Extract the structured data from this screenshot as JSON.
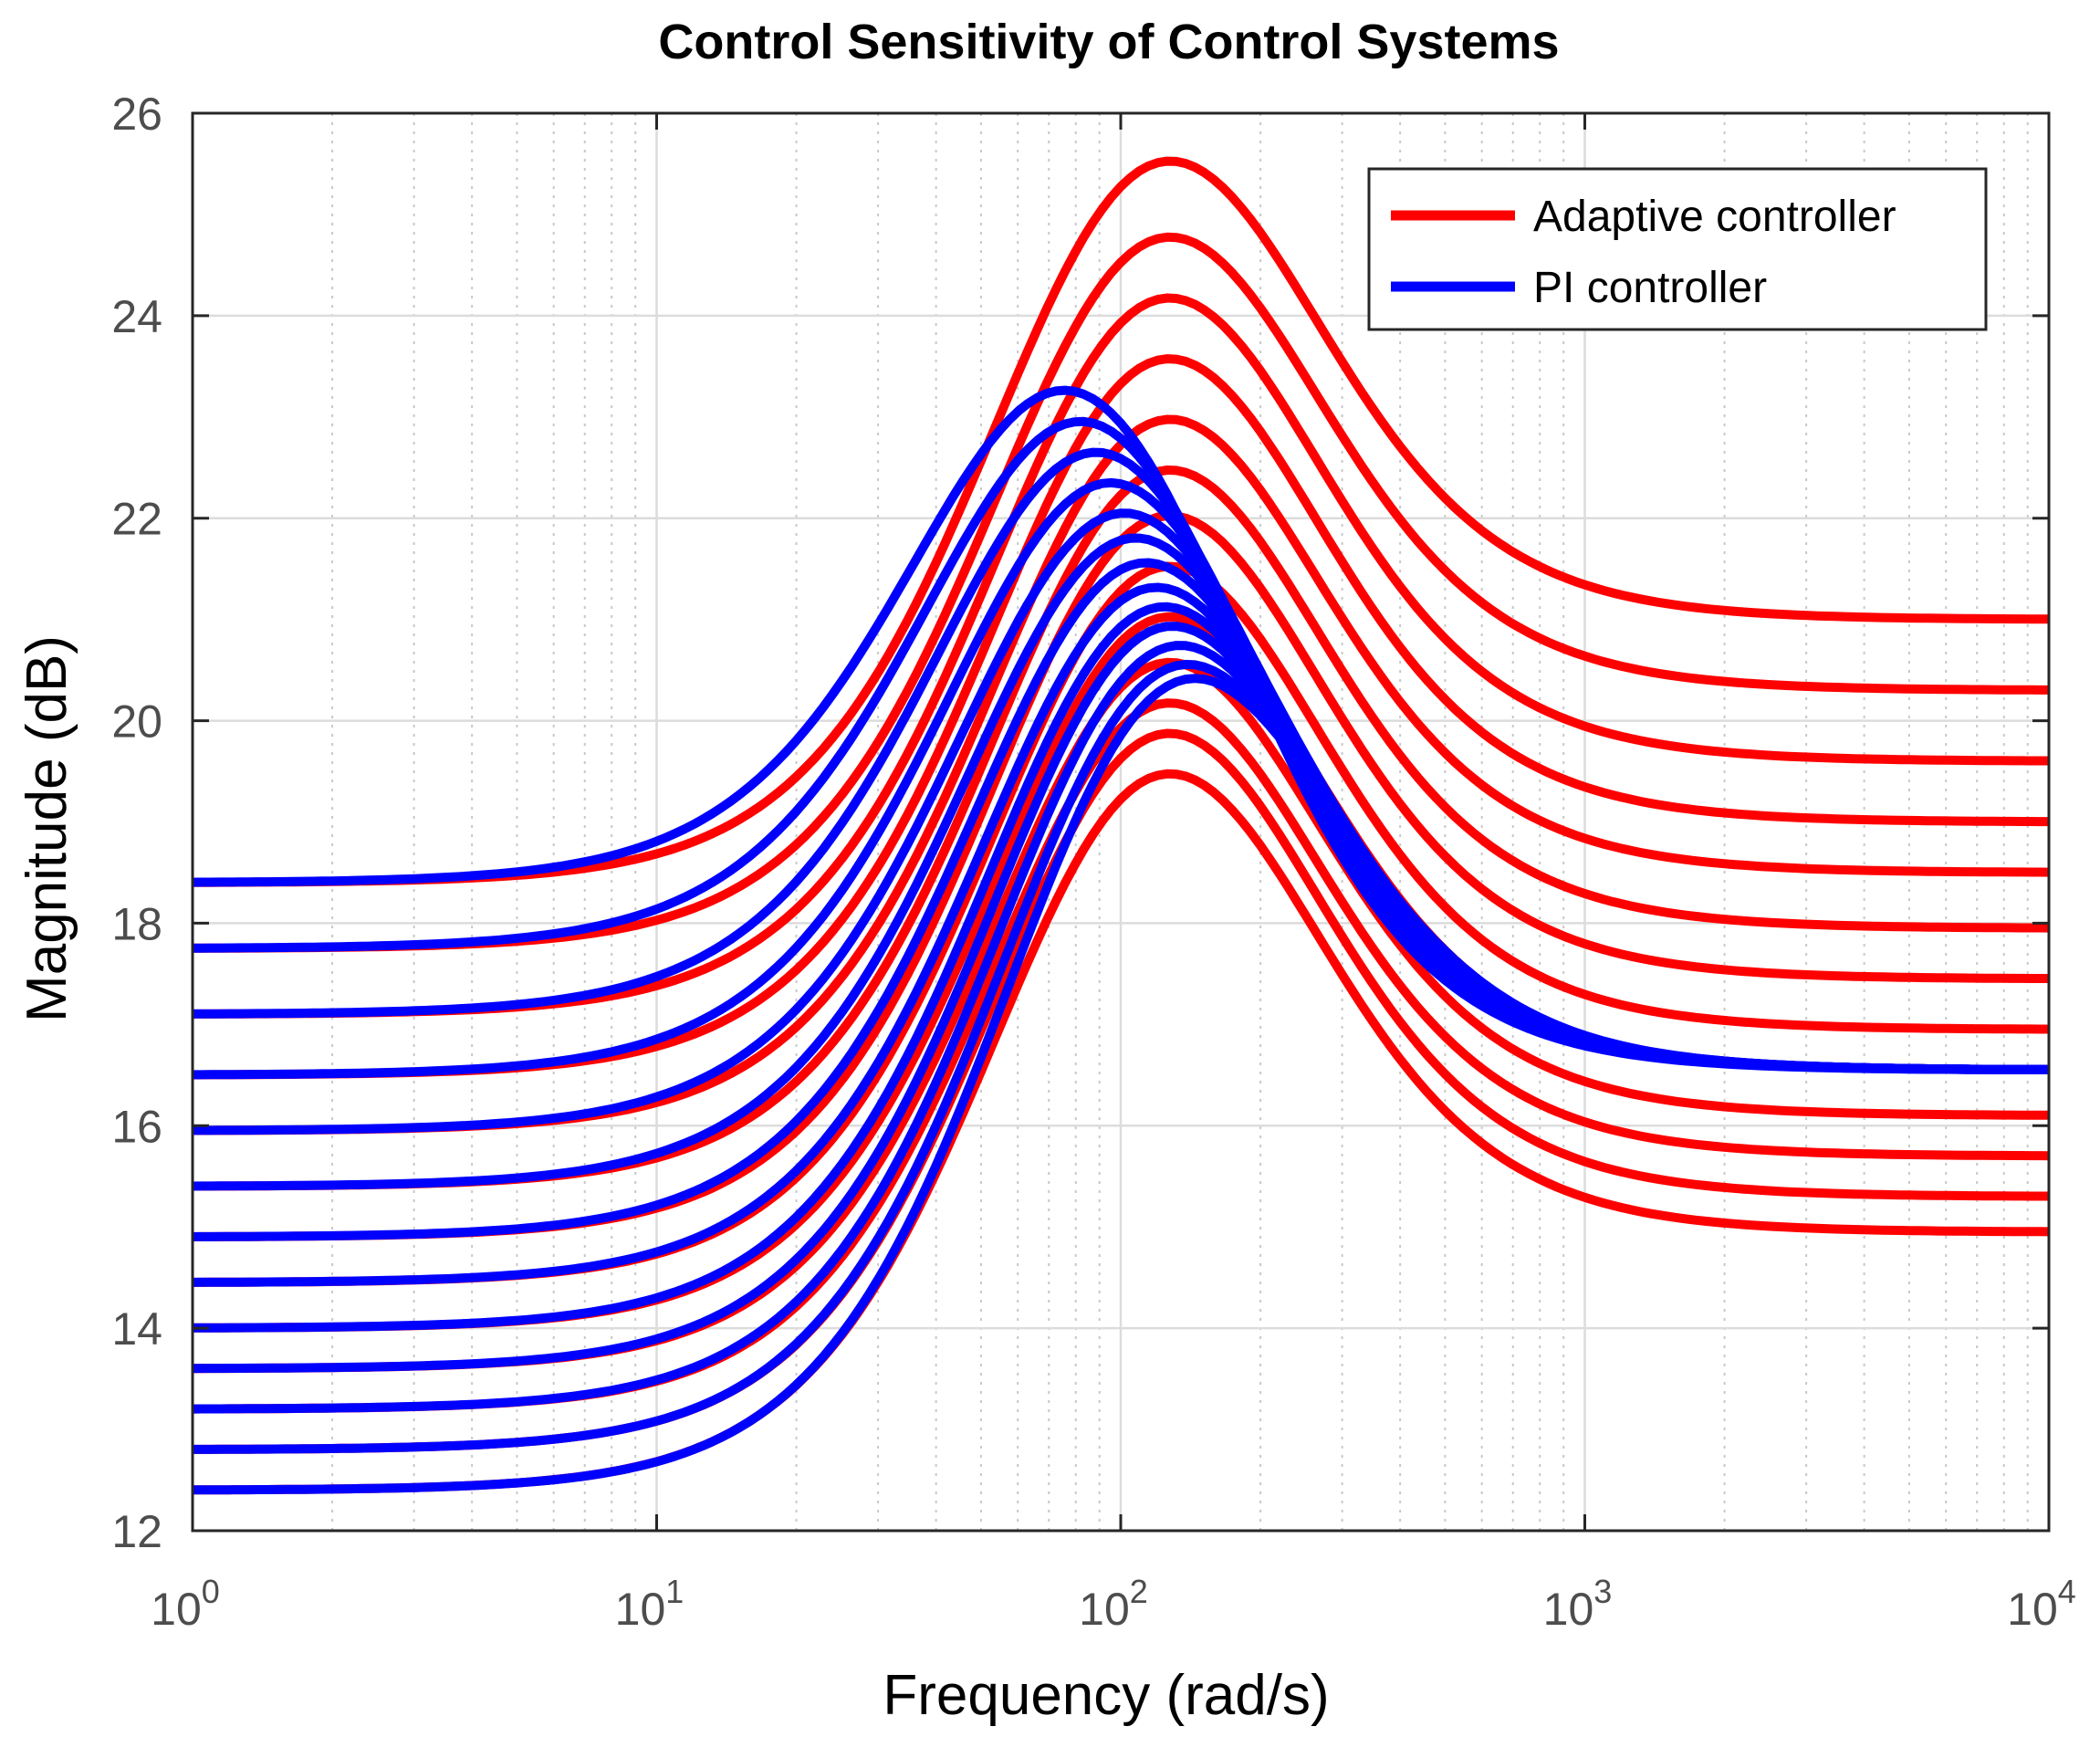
{
  "chart_data": {
    "type": "line",
    "title": "Control Sensitivity of Control Systems",
    "xlabel": "Frequency  (rad/s)",
    "ylabel": "Magnitude (dB)",
    "xscale": "log",
    "xlim": [
      1,
      10000
    ],
    "ylim": [
      12,
      26
    ],
    "grid": true,
    "minor_grid": true,
    "xticks": [
      {
        "value": 1,
        "base": "10",
        "exp": "0"
      },
      {
        "value": 10,
        "base": "10",
        "exp": "1"
      },
      {
        "value": 100,
        "base": "10",
        "exp": "2"
      },
      {
        "value": 1000,
        "base": "10",
        "exp": "3"
      },
      {
        "value": 10000,
        "base": "10",
        "exp": "4"
      }
    ],
    "yticks": [
      12,
      14,
      16,
      18,
      20,
      22,
      24,
      26
    ],
    "legend": {
      "position": "top-right",
      "entries": [
        {
          "label": "Adaptive controller",
          "color": "#ff0000"
        },
        {
          "label": "PI controller",
          "color": "#0000ff"
        }
      ]
    },
    "series": [
      {
        "name": "Adaptive controller",
        "color": "#ff0000",
        "low_freq_db": 18.4,
        "peak_db": 25.5,
        "peak_freq": 118,
        "high_freq_db": 21.0
      },
      {
        "name": "Adaptive controller",
        "color": "#ff0000",
        "low_freq_db": 17.75,
        "peak_db": 24.75,
        "peak_freq": 118,
        "high_freq_db": 20.3
      },
      {
        "name": "Adaptive controller",
        "color": "#ff0000",
        "low_freq_db": 17.1,
        "peak_db": 24.15,
        "peak_freq": 118,
        "high_freq_db": 19.6
      },
      {
        "name": "Adaptive controller",
        "color": "#ff0000",
        "low_freq_db": 16.5,
        "peak_db": 23.55,
        "peak_freq": 118,
        "high_freq_db": 19.0
      },
      {
        "name": "Adaptive controller",
        "color": "#ff0000",
        "low_freq_db": 15.95,
        "peak_db": 22.95,
        "peak_freq": 118,
        "high_freq_db": 18.5
      },
      {
        "name": "Adaptive controller",
        "color": "#ff0000",
        "low_freq_db": 15.4,
        "peak_db": 22.45,
        "peak_freq": 118,
        "high_freq_db": 17.95
      },
      {
        "name": "Adaptive controller",
        "color": "#ff0000",
        "low_freq_db": 14.9,
        "peak_db": 22.0,
        "peak_freq": 118,
        "high_freq_db": 17.45
      },
      {
        "name": "Adaptive controller",
        "color": "#ff0000",
        "low_freq_db": 14.45,
        "peak_db": 21.5,
        "peak_freq": 118,
        "high_freq_db": 16.95
      },
      {
        "name": "Adaptive controller",
        "color": "#ff0000",
        "low_freq_db": 14.0,
        "peak_db": 21.0,
        "peak_freq": 118,
        "high_freq_db": 16.55
      },
      {
        "name": "Adaptive controller",
        "color": "#ff0000",
        "low_freq_db": 13.6,
        "peak_db": 20.55,
        "peak_freq": 118,
        "high_freq_db": 16.1
      },
      {
        "name": "Adaptive controller",
        "color": "#ff0000",
        "low_freq_db": 13.2,
        "peak_db": 20.15,
        "peak_freq": 118,
        "high_freq_db": 15.7
      },
      {
        "name": "Adaptive controller",
        "color": "#ff0000",
        "low_freq_db": 12.8,
        "peak_db": 19.85,
        "peak_freq": 118,
        "high_freq_db": 15.3
      },
      {
        "name": "Adaptive controller",
        "color": "#ff0000",
        "low_freq_db": 12.4,
        "peak_db": 19.45,
        "peak_freq": 118,
        "high_freq_db": 14.95
      },
      {
        "name": "PI controller",
        "color": "#0000ff",
        "low_freq_db": 18.4,
        "peak_db": 23.25,
        "peak_freq": 80,
        "high_freq_db": 16.55
      },
      {
        "name": "PI controller",
        "color": "#0000ff",
        "low_freq_db": 17.75,
        "peak_db": 22.95,
        "peak_freq": 85,
        "high_freq_db": 16.55
      },
      {
        "name": "PI controller",
        "color": "#0000ff",
        "low_freq_db": 17.1,
        "peak_db": 22.65,
        "peak_freq": 90,
        "high_freq_db": 16.55
      },
      {
        "name": "PI controller",
        "color": "#0000ff",
        "low_freq_db": 16.5,
        "peak_db": 22.35,
        "peak_freq": 95,
        "high_freq_db": 16.55
      },
      {
        "name": "PI controller",
        "color": "#0000ff",
        "low_freq_db": 15.95,
        "peak_db": 22.05,
        "peak_freq": 100,
        "high_freq_db": 16.55
      },
      {
        "name": "PI controller",
        "color": "#0000ff",
        "low_freq_db": 15.4,
        "peak_db": 21.8,
        "peak_freq": 104,
        "high_freq_db": 16.55
      },
      {
        "name": "PI controller",
        "color": "#0000ff",
        "low_freq_db": 14.9,
        "peak_db": 21.55,
        "peak_freq": 108,
        "high_freq_db": 16.55
      },
      {
        "name": "PI controller",
        "color": "#0000ff",
        "low_freq_db": 14.45,
        "peak_db": 21.3,
        "peak_freq": 112,
        "high_freq_db": 16.55
      },
      {
        "name": "PI controller",
        "color": "#0000ff",
        "low_freq_db": 14.0,
        "peak_db": 21.1,
        "peak_freq": 115,
        "high_freq_db": 16.55
      },
      {
        "name": "PI controller",
        "color": "#0000ff",
        "low_freq_db": 13.6,
        "peak_db": 20.9,
        "peak_freq": 118,
        "high_freq_db": 16.55
      },
      {
        "name": "PI controller",
        "color": "#0000ff",
        "low_freq_db": 13.2,
        "peak_db": 20.7,
        "peak_freq": 121,
        "high_freq_db": 16.55
      },
      {
        "name": "PI controller",
        "color": "#0000ff",
        "low_freq_db": 12.8,
        "peak_db": 20.5,
        "peak_freq": 124,
        "high_freq_db": 16.55
      },
      {
        "name": "PI controller",
        "color": "#0000ff",
        "low_freq_db": 12.4,
        "peak_db": 20.35,
        "peak_freq": 127,
        "high_freq_db": 16.55
      }
    ]
  }
}
